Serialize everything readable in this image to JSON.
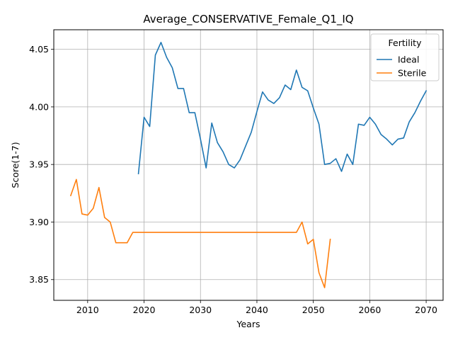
{
  "chart_data": {
    "type": "line",
    "title": "Average_CONSERVATIVE_Female_Q1_IQ",
    "xlabel": "Years",
    "ylabel": "Score(1-7)",
    "xlim": [
      2004,
      2073
    ],
    "ylim": [
      3.832,
      4.067
    ],
    "xticks": [
      2010,
      2020,
      2030,
      2040,
      2050,
      2060,
      2070
    ],
    "yticks": [
      3.85,
      3.9,
      3.95,
      4.0,
      4.05
    ],
    "ytick_labels": [
      "3.85",
      "3.90",
      "3.95",
      "4.00",
      "4.05"
    ],
    "grid": true,
    "legend": {
      "title": "Fertility",
      "placement": "top-right"
    },
    "series": [
      {
        "name": "Ideal",
        "color": "#1f77b4",
        "x": [
          2019,
          2020,
          2021,
          2022,
          2023,
          2024,
          2025,
          2026,
          2027,
          2028,
          2029,
          2030,
          2031,
          2032,
          2033,
          2034,
          2035,
          2036,
          2037,
          2038,
          2039,
          2040,
          2041,
          2042,
          2043,
          2044,
          2045,
          2046,
          2047,
          2048,
          2049,
          2050,
          2051,
          2052,
          2053,
          2054,
          2055,
          2056,
          2057,
          2058,
          2059,
          2060,
          2061,
          2062,
          2063,
          2064,
          2065,
          2066,
          2067,
          2068,
          2069,
          2070
        ],
        "y": [
          3.942,
          3.991,
          3.983,
          4.045,
          4.056,
          4.043,
          4.034,
          4.016,
          4.016,
          3.995,
          3.995,
          3.972,
          3.947,
          3.986,
          3.969,
          3.961,
          3.95,
          3.947,
          3.954,
          3.966,
          3.978,
          3.996,
          4.013,
          4.006,
          4.003,
          4.008,
          4.019,
          4.015,
          4.032,
          4.017,
          4.014,
          3.999,
          3.985,
          3.95,
          3.951,
          3.955,
          3.944,
          3.959,
          3.95,
          3.985,
          3.984,
          3.991,
          3.985,
          3.976,
          3.972,
          3.967,
          3.972,
          3.973,
          3.987,
          3.995,
          4.005,
          4.014
        ]
      },
      {
        "name": "Sterile",
        "color": "#ff7f0e",
        "x": [
          2007,
          2008,
          2009,
          2010,
          2011,
          2012,
          2013,
          2014,
          2015,
          2016,
          2017,
          2018,
          2019,
          2020,
          2021,
          2022,
          2023,
          2024,
          2025,
          2026,
          2027,
          2028,
          2029,
          2030,
          2031,
          2032,
          2033,
          2034,
          2035,
          2036,
          2037,
          2038,
          2039,
          2040,
          2041,
          2042,
          2043,
          2044,
          2045,
          2046,
          2047,
          2048,
          2049,
          2050,
          2051,
          2052,
          2053
        ],
        "y": [
          3.923,
          3.937,
          3.907,
          3.906,
          3.912,
          3.93,
          3.904,
          3.9,
          3.882,
          3.882,
          3.882,
          3.891,
          3.891,
          3.891,
          3.891,
          3.891,
          3.891,
          3.891,
          3.891,
          3.891,
          3.891,
          3.891,
          3.891,
          3.891,
          3.891,
          3.891,
          3.891,
          3.891,
          3.891,
          3.891,
          3.891,
          3.891,
          3.891,
          3.891,
          3.891,
          3.891,
          3.891,
          3.891,
          3.891,
          3.891,
          3.891,
          3.9,
          3.881,
          3.885,
          3.856,
          3.843,
          3.885
        ]
      }
    ]
  }
}
